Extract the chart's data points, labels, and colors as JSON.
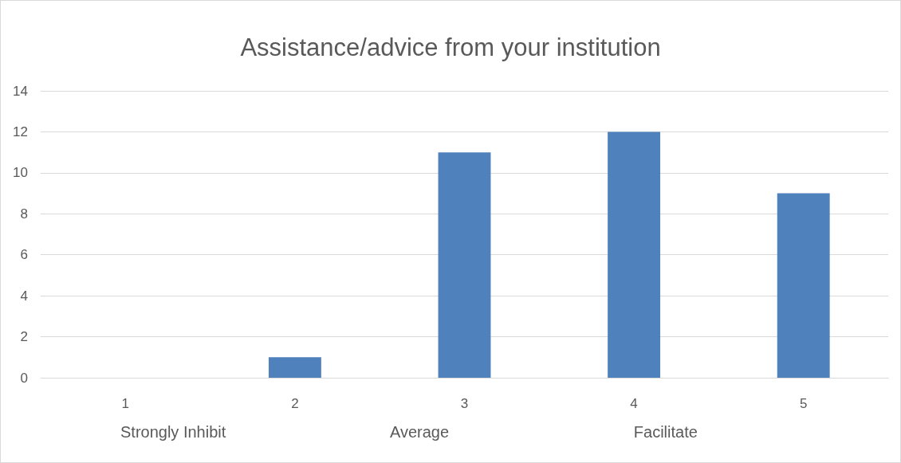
{
  "chart_data": {
    "type": "bar",
    "title": "Assistance/advice from your institution",
    "categories": [
      "1",
      "2",
      "3",
      "4",
      "5"
    ],
    "values": [
      0,
      1,
      11,
      12,
      9
    ],
    "color": "#4f81bd",
    "ylim": [
      0,
      14
    ],
    "yticks": [
      0,
      2,
      4,
      6,
      8,
      10,
      12,
      14
    ],
    "grid": true,
    "annotations": [
      "Strongly Inhibit",
      "Average",
      "Facilitate"
    ]
  }
}
